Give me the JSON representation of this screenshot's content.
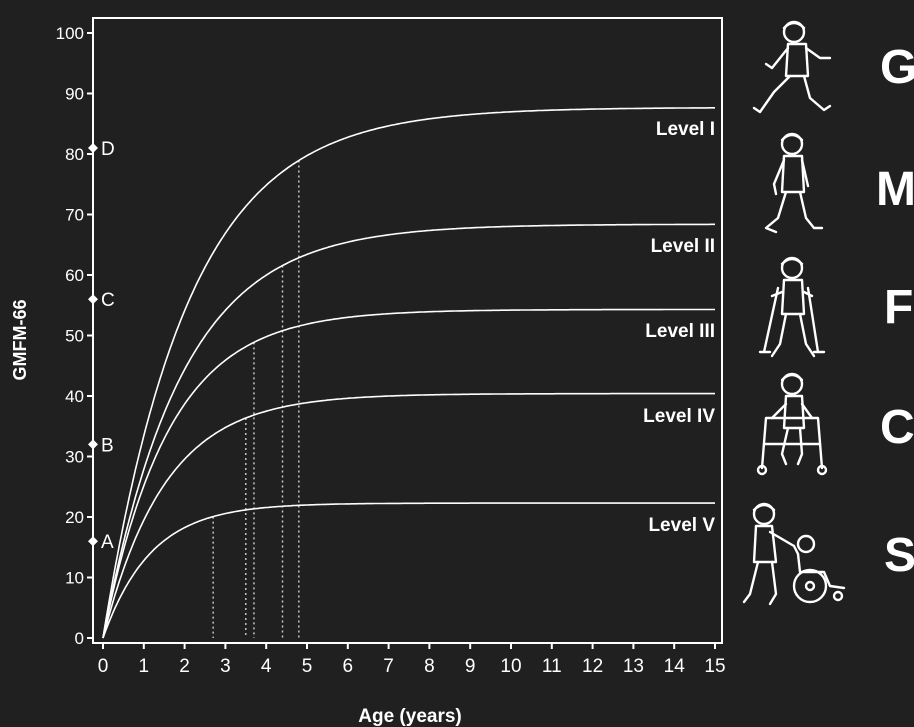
{
  "chart_data": {
    "type": "line",
    "xlabel": "Age (years)",
    "ylabel": "GMFM-66",
    "xlim": [
      0,
      15
    ],
    "ylim": [
      0,
      100
    ],
    "x_ticks": [
      "0",
      "1",
      "2",
      "3",
      "4",
      "5",
      "6",
      "7",
      "8",
      "9",
      "10",
      "11",
      "12",
      "13",
      "14",
      "15"
    ],
    "y_ticks": [
      "0",
      "10",
      "20",
      "30",
      "40",
      "50",
      "60",
      "70",
      "80",
      "90",
      "100"
    ],
    "grid": false,
    "series": [
      {
        "name": "Level I",
        "limit": 87.7,
        "age90": 4.8,
        "values": [
          [
            0,
            0
          ],
          [
            1,
            42.0
          ],
          [
            2,
            62.5
          ],
          [
            3,
            73.7
          ],
          [
            4,
            80.0
          ],
          [
            4.8,
            83.3
          ],
          [
            6,
            85.7
          ],
          [
            8,
            87.1
          ],
          [
            10,
            87.5
          ],
          [
            12,
            87.6
          ],
          [
            15,
            87.7
          ]
        ]
      },
      {
        "name": "Level II",
        "limit": 68.4,
        "age90": 4.4,
        "values": [
          [
            0,
            0
          ],
          [
            1,
            34.3
          ],
          [
            2,
            50.8
          ],
          [
            3,
            59.5
          ],
          [
            4,
            64.1
          ],
          [
            4.4,
            65.2
          ],
          [
            6,
            67.2
          ],
          [
            8,
            68.0
          ],
          [
            10,
            68.3
          ],
          [
            12,
            68.4
          ],
          [
            15,
            68.4
          ]
        ]
      },
      {
        "name": "Level III",
        "limit": 54.3,
        "age90": 3.7,
        "values": [
          [
            0,
            0
          ],
          [
            1,
            29.3
          ],
          [
            2,
            42.7
          ],
          [
            3,
            49.2
          ],
          [
            3.7,
            51.6
          ],
          [
            5,
            53.2
          ],
          [
            6,
            53.8
          ],
          [
            8,
            54.2
          ],
          [
            10,
            54.3
          ],
          [
            15,
            54.3
          ]
        ]
      },
      {
        "name": "Level IV",
        "limit": 40.4,
        "age90": 3.5,
        "values": [
          [
            0,
            0
          ],
          [
            1,
            22.6
          ],
          [
            2,
            32.6
          ],
          [
            3,
            37.2
          ],
          [
            3.5,
            38.4
          ],
          [
            5,
            39.8
          ],
          [
            6,
            40.1
          ],
          [
            8,
            40.3
          ],
          [
            10,
            40.4
          ],
          [
            15,
            40.4
          ]
        ]
      },
      {
        "name": "Level V",
        "limit": 22.3,
        "age90": 2.7,
        "values": [
          [
            0,
            0
          ],
          [
            1,
            14.3
          ],
          [
            2,
            19.4
          ],
          [
            2.7,
            21.1
          ],
          [
            4,
            22.0
          ],
          [
            5,
            22.2
          ],
          [
            6,
            22.3
          ],
          [
            10,
            22.3
          ],
          [
            15,
            22.3
          ]
        ]
      }
    ],
    "annotations": [
      {
        "label": "A",
        "y": 16
      },
      {
        "label": "B",
        "y": 32
      },
      {
        "label": "C",
        "y": 56
      },
      {
        "label": "D",
        "y": 81
      }
    ]
  },
  "side_panel": {
    "letters": [
      "G",
      "M",
      "F",
      "C",
      "S"
    ],
    "figures": [
      "running-child-icon",
      "walking-child-icon",
      "child-with-crutches-icon",
      "child-with-walker-icon",
      "child-in-wheelchair-icon"
    ]
  },
  "colors": {
    "background": "#202020",
    "line": "#ffffff",
    "text": "#ffffff"
  }
}
